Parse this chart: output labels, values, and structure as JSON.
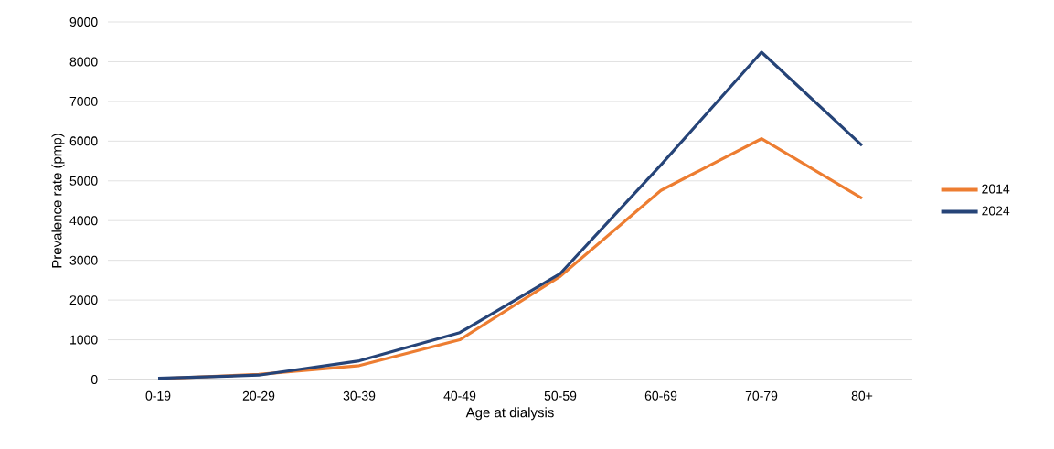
{
  "chart_data": {
    "type": "line",
    "xlabel": "Age at dialysis",
    "ylabel": "Prevalence rate (pmp)",
    "categories": [
      "0-19",
      "20-29",
      "30-39",
      "40-49",
      "50-59",
      "60-69",
      "70-79",
      "80+"
    ],
    "series": [
      {
        "name": "2014",
        "color": "#ed7d31",
        "values": [
          20,
          130,
          350,
          1000,
          2600,
          4760,
          6060,
          4560
        ]
      },
      {
        "name": "2024",
        "color": "#264478",
        "values": [
          30,
          110,
          470,
          1180,
          2670,
          5400,
          8240,
          5890
        ]
      }
    ],
    "ylim": [
      0,
      9000
    ],
    "yticks": [
      0,
      1000,
      2000,
      3000,
      4000,
      5000,
      6000,
      7000,
      8000,
      9000
    ],
    "grid": "y",
    "legend": "right",
    "marker": "none",
    "line_style": "solid"
  }
}
